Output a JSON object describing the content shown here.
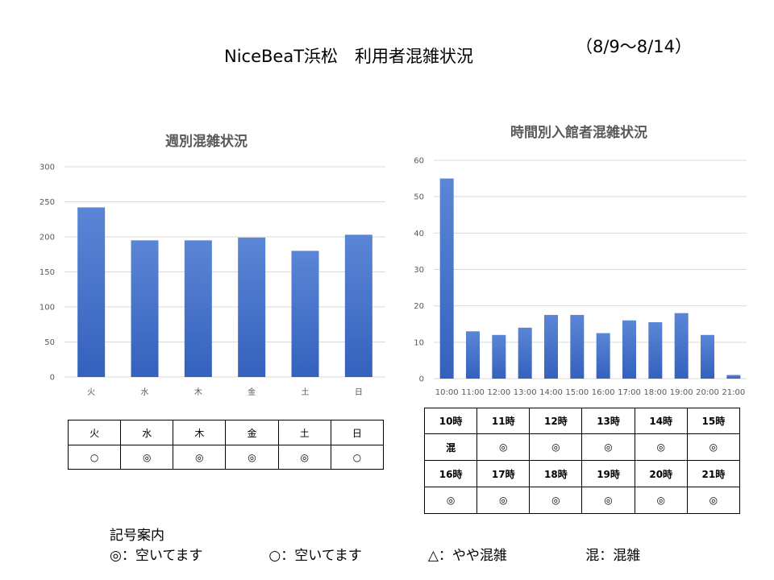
{
  "header": {
    "title": "NiceBeaT浜松　利用者混雑状況",
    "period": "（8/9～8/14）"
  },
  "colors": {
    "bar": "#4472c4",
    "grid": "#d9d9d9",
    "axis_text": "#595959"
  },
  "chart_data": [
    {
      "type": "bar",
      "title": "週別混雑状況",
      "categories": [
        "火",
        "水",
        "木",
        "金",
        "土",
        "日"
      ],
      "values": [
        242,
        195,
        195,
        199,
        180,
        203
      ],
      "ylim": [
        0,
        300
      ],
      "yticks": [
        0,
        50,
        100,
        150,
        200,
        250,
        300
      ],
      "grid": true
    },
    {
      "type": "bar",
      "title": "時間別入館者混雑状況",
      "categories": [
        "10:00",
        "11:00",
        "12:00",
        "13:00",
        "14:00",
        "15:00",
        "16:00",
        "17:00",
        "18:00",
        "19:00",
        "20:00",
        "21:00"
      ],
      "values": [
        55,
        13,
        12,
        14,
        17.5,
        17.5,
        12.5,
        16,
        15.5,
        18,
        12,
        1
      ],
      "ylim": [
        0,
        60
      ],
      "yticks": [
        0,
        10,
        20,
        30,
        40,
        50,
        60
      ],
      "grid": true
    }
  ],
  "weekday_table": {
    "days": [
      "火",
      "水",
      "木",
      "金",
      "土",
      "日"
    ],
    "status": [
      "○",
      "◎",
      "◎",
      "◎",
      "◎",
      "○"
    ]
  },
  "hour_table": {
    "row1_hours": [
      "10時",
      "11時",
      "12時",
      "13時",
      "14時",
      "15時"
    ],
    "row1_status": [
      "混",
      "◎",
      "◎",
      "◎",
      "◎",
      "◎"
    ],
    "row2_hours": [
      "16時",
      "17時",
      "18時",
      "19時",
      "20時",
      "21時"
    ],
    "row2_status": [
      "◎",
      "◎",
      "◎",
      "◎",
      "◎",
      "◎"
    ]
  },
  "legend": {
    "heading": "記号案内",
    "items": [
      "◎：空いてます",
      "○：空いてます",
      "△：やや混雑",
      "混：混雑"
    ]
  }
}
